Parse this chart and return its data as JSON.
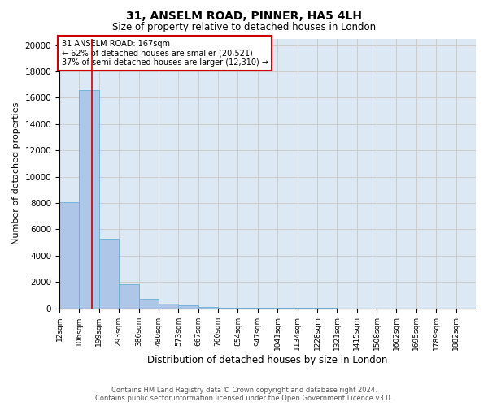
{
  "title1": "31, ANSELM ROAD, PINNER, HA5 4LH",
  "title2": "Size of property relative to detached houses in London",
  "xlabel": "Distribution of detached houses by size in London",
  "ylabel": "Number of detached properties",
  "bar_color": "#aec6e8",
  "bar_edgecolor": "#6aaed6",
  "annotation_title": "31 ANSELM ROAD: 167sqm",
  "annotation_line1": "← 62% of detached houses are smaller (20,521)",
  "annotation_line2": "37% of semi-detached houses are larger (12,310) →",
  "vline_color": "#cc0000",
  "annotation_box_edgecolor": "#cc0000",
  "categories": [
    "12sqm",
    "106sqm",
    "199sqm",
    "293sqm",
    "386sqm",
    "480sqm",
    "573sqm",
    "667sqm",
    "760sqm",
    "854sqm",
    "947sqm",
    "1041sqm",
    "1134sqm",
    "1228sqm",
    "1321sqm",
    "1415sqm",
    "1508sqm",
    "1602sqm",
    "1695sqm",
    "1789sqm",
    "1882sqm"
  ],
  "values": [
    8050,
    16600,
    5300,
    1800,
    700,
    350,
    200,
    110,
    65,
    40,
    28,
    18,
    12,
    8,
    5,
    4,
    3,
    2,
    1.5,
    1,
    0.5
  ],
  "vline_bar_index": 1.65,
  "ylim": [
    0,
    20500
  ],
  "yticks": [
    0,
    2000,
    4000,
    6000,
    8000,
    10000,
    12000,
    14000,
    16000,
    18000,
    20000
  ],
  "grid_color": "#cccccc",
  "background_color": "#dce9f5",
  "footer1": "Contains HM Land Registry data © Crown copyright and database right 2024.",
  "footer2": "Contains public sector information licensed under the Open Government Licence v3.0."
}
